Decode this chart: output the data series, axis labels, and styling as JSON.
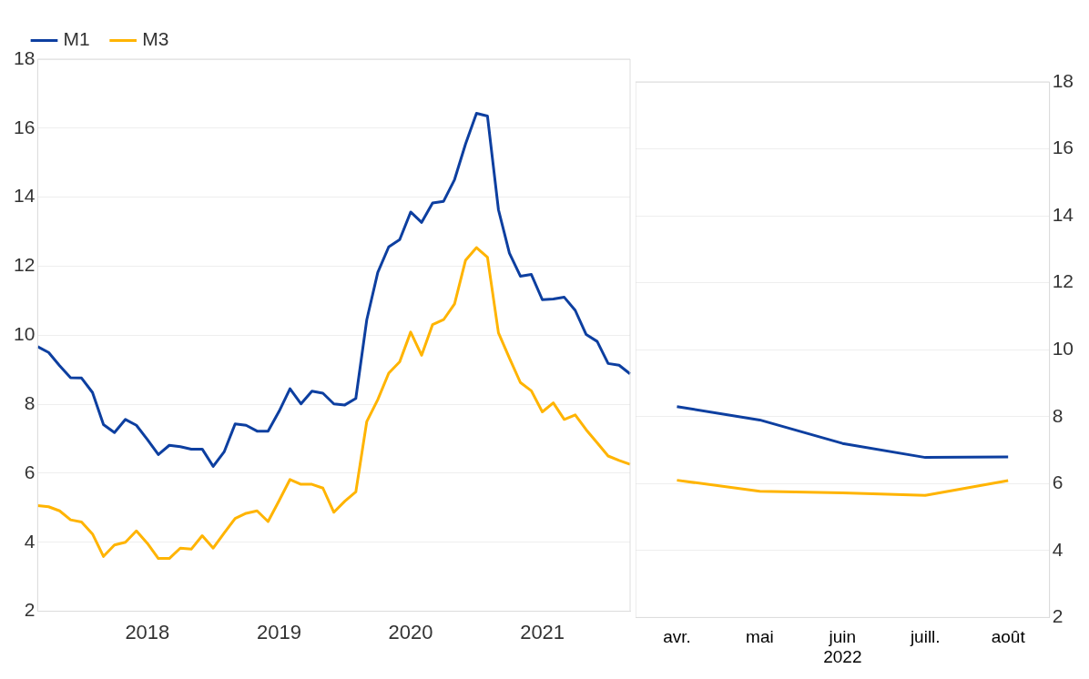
{
  "chart_data": [
    {
      "type": "line",
      "categories": [
        null,
        null,
        null,
        null,
        null,
        null,
        null,
        null,
        null,
        null,
        "2018",
        null,
        null,
        null,
        null,
        null,
        null,
        null,
        null,
        null,
        null,
        null,
        "2019",
        null,
        null,
        null,
        null,
        null,
        null,
        null,
        null,
        null,
        null,
        null,
        "2020",
        null,
        null,
        null,
        null,
        null,
        null,
        null,
        null,
        null,
        null,
        null,
        "2021",
        null,
        null,
        null,
        null,
        null,
        null,
        null,
        null
      ],
      "series": [
        {
          "name": "M1",
          "color": "#0d3fa0",
          "values": [
            9.67,
            9.5,
            9.12,
            8.77,
            8.76,
            8.34,
            7.41,
            7.18,
            7.56,
            7.39,
            6.98,
            6.54,
            6.81,
            6.77,
            6.7,
            6.7,
            6.2,
            6.62,
            7.43,
            7.39,
            7.22,
            7.22,
            7.79,
            8.45,
            8.01,
            8.38,
            8.32,
            8.01,
            7.98,
            8.17,
            10.45,
            11.82,
            12.56,
            12.77,
            13.57,
            13.27,
            13.83,
            13.88,
            14.51,
            15.54,
            16.43,
            16.35,
            13.64,
            12.38,
            11.71,
            11.76,
            11.03,
            11.05,
            11.1,
            10.72,
            10.02,
            9.82,
            9.18,
            9.13,
            8.88
          ]
        },
        {
          "name": "M3",
          "color": "#ffb400",
          "values": [
            5.06,
            5.03,
            4.91,
            4.65,
            4.59,
            4.24,
            3.59,
            3.92,
            4.0,
            4.33,
            3.97,
            3.53,
            3.53,
            3.83,
            3.8,
            4.19,
            3.83,
            4.27,
            4.69,
            4.84,
            4.91,
            4.6,
            5.2,
            5.82,
            5.68,
            5.68,
            5.57,
            4.87,
            5.19,
            5.46,
            7.5,
            8.13,
            8.9,
            9.23,
            10.09,
            9.42,
            10.31,
            10.45,
            10.91,
            12.17,
            12.54,
            12.26,
            10.07,
            9.34,
            8.63,
            8.39,
            7.78,
            8.04,
            7.56,
            7.69,
            7.26,
            6.88,
            6.5,
            6.37,
            6.26
          ]
        }
      ],
      "ylim": [
        2,
        18
      ],
      "yticks": [
        2,
        4,
        6,
        8,
        10,
        12,
        14,
        16,
        18
      ],
      "grid": "y",
      "legend": "top left"
    },
    {
      "type": "line",
      "categories": [
        "avr.",
        "mai",
        "juin",
        "juill.",
        "août"
      ],
      "xlabel": "2022",
      "series": [
        {
          "color": "#0d3fa0",
          "values": [
            8.3,
            7.9,
            7.2,
            6.78,
            6.8
          ]
        },
        {
          "color": "#ffb400",
          "values": [
            6.1,
            5.77,
            5.72,
            5.65,
            6.09
          ]
        }
      ],
      "ylim": [
        2,
        18
      ],
      "yticks": [
        2,
        4,
        6,
        8,
        10,
        12,
        14,
        16,
        18
      ],
      "grid": "y"
    }
  ]
}
